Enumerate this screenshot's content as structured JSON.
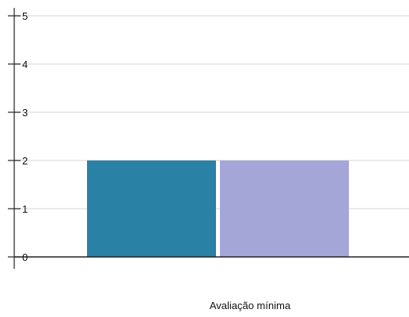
{
  "chart_data": {
    "type": "bar",
    "categories": [
      "Avaliação mínima"
    ],
    "series": [
      {
        "values": [
          2
        ]
      },
      {
        "values": [
          2
        ]
      }
    ],
    "ylim": [
      0,
      5
    ],
    "y_ticks": [
      "0",
      "1",
      "2",
      "3",
      "4",
      "5"
    ],
    "grid": true,
    "legend": "none",
    "colors": [
      "#2A81A6",
      "#A3A6D6"
    ]
  }
}
